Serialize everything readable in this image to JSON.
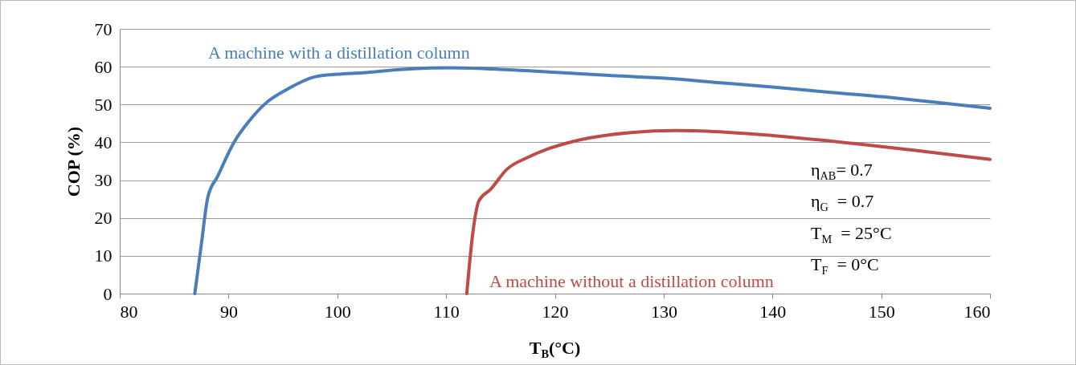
{
  "chart_data": {
    "type": "line",
    "xlabel": "T$_{B}$(°C)",
    "ylabel": "COP (%)",
    "xlim": [
      80,
      160
    ],
    "xticks": [
      80,
      90,
      100,
      110,
      120,
      130,
      140,
      150,
      160
    ],
    "ylim": [
      0,
      70
    ],
    "yticks": [
      0,
      10,
      20,
      30,
      40,
      50,
      60,
      70
    ],
    "grid": "y",
    "legend": false,
    "series": [
      {
        "name": "A machine with a distillation column",
        "color": "#4a7ebb",
        "x": [
          86.9,
          87.5,
          88.1,
          89,
          90.5,
          92,
          93.4,
          95.5,
          97.9,
          100,
          102.3,
          106,
          110.4,
          115,
          120.8,
          125,
          130.4,
          135,
          140,
          145,
          150.3,
          155,
          160
        ],
        "values": [
          0,
          13,
          25.5,
          31,
          40,
          46,
          50.3,
          54.2,
          57.3,
          58,
          58.4,
          59.3,
          59.7,
          59.3,
          58.4,
          57.7,
          56.9,
          55.8,
          54.6,
          53.3,
          52,
          50.6,
          49
        ]
      },
      {
        "name": "A machine without a distillation column",
        "color": "#be4b48",
        "x": [
          111.9,
          112.5,
          113,
          114.1,
          115.6,
          117.5,
          119.3,
          121.5,
          123.7,
          127,
          131.1,
          135,
          140,
          147.4,
          153,
          160
        ],
        "values": [
          0,
          17,
          24.4,
          27.6,
          32.9,
          36,
          38.2,
          40.1,
          41.4,
          42.6,
          43.1,
          42.8,
          41.8,
          39.7,
          37.9,
          35.5
        ]
      }
    ],
    "annotations": [
      "η$_{AB}$= 0.7",
      "η$_{G}$  = 0.7",
      "T$_{M}$  = 25°C",
      "T$_{F}$  = 0°C"
    ]
  }
}
